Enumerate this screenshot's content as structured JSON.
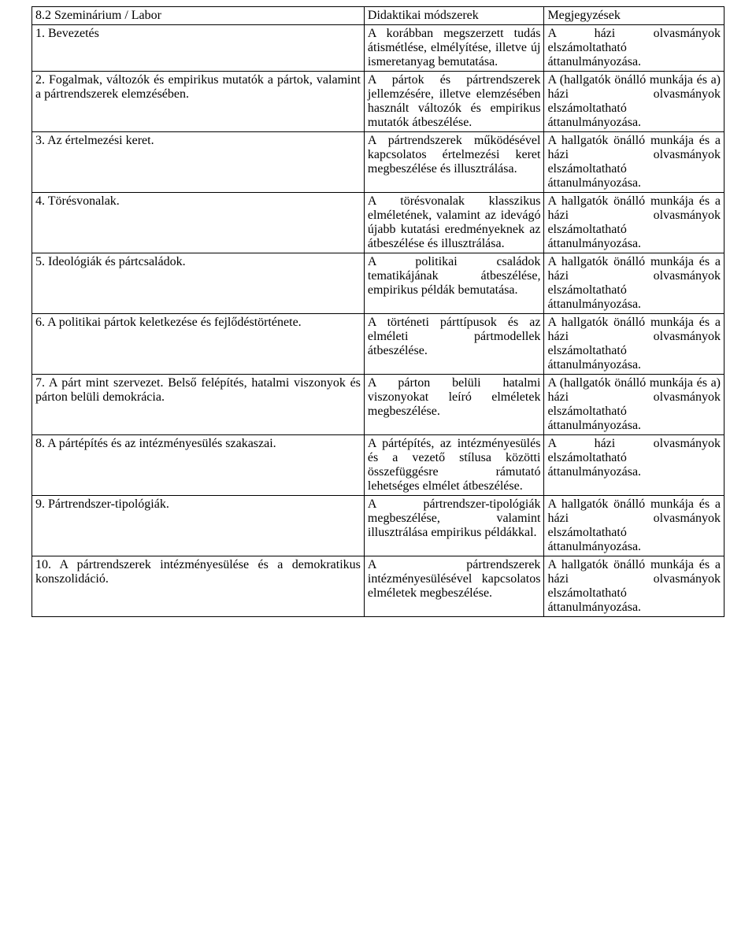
{
  "table": {
    "header": {
      "col1": "8.2 Szeminárium / Labor",
      "col2": "Didaktikai módszerek",
      "col3": "Megjegyzések"
    },
    "rows": [
      {
        "topic": "1. Bevezetés",
        "method": "A korábban megszerzett tudás átismétlése, elmélyítése, illetve új ismeretanyag bemutatása.",
        "note": "A házi olvasmányok elszámoltatható áttanulmányozása."
      },
      {
        "topic": "2. Fogalmak, változók és empirikus mutatók a pártok, valamint a pártrendszerek elemzésében.",
        "method": "A pártok és pártrendszerek jellemzésére, illetve elemzésében használt változók és empirikus mutatók átbeszélése.",
        "note": "A (hallgatók önálló munkája és a) házi olvasmányok elszámoltatható áttanulmányozása."
      },
      {
        "topic": "3. Az értelmezési keret.",
        "method": "A pártrendszerek működésével kapcsolatos értelmezési keret megbeszélése és illusztrálása.",
        "note": "A hallgatók önálló munkája és a házi olvasmányok elszámoltatható áttanulmányozása."
      },
      {
        "topic": "4. Törésvonalak.",
        "method": "A törésvonalak klasszikus elméletének, valamint az idevágó újabb kutatási eredményeknek az átbeszélése és illusztrálása.",
        "note": "A hallgatók önálló munkája és a házi olvasmányok elszámoltatható áttanulmányozása."
      },
      {
        "topic": "5. Ideológiák és pártcsaládok.",
        "method": "A politikai családok tematikájának átbeszélése, empirikus példák bemutatása.",
        "note": "A hallgatók önálló munkája és a házi olvasmányok elszámoltatható áttanulmányozása."
      },
      {
        "topic": "6. A politikai pártok keletkezése és fejlődéstörténete.",
        "method": "A történeti párttípusok és az elméleti pártmodellek átbeszélése.",
        "note": "A hallgatók önálló munkája és a házi olvasmányok elszámoltatható áttanulmányozása."
      },
      {
        "topic": "7. A párt mint szervezet. Belső felépítés, hatalmi viszonyok és párton belüli demokrácia.",
        "method": "A párton belüli hatalmi viszonyokat leíró elméletek megbeszélése.",
        "note": "A (hallgatók önálló munkája és a) házi olvasmányok elszámoltatható áttanulmányozása."
      },
      {
        "topic": "8. A pártépítés és az intézményesülés szakaszai.",
        "method": "A pártépítés, az intézményesülés és a vezető stílusa közötti összefüggésre rámutató lehetséges elmélet átbeszélése.",
        "note": "A házi olvasmányok elszámoltatható áttanulmányozása."
      },
      {
        "topic": "9. Pártrendszer-tipológiák.",
        "method": "A pártrendszer-tipológiák megbeszélése, valamint illusztrálása empirikus példákkal.",
        "note": "A hallgatók önálló munkája és a házi olvasmányok elszámoltatható áttanulmányozása."
      },
      {
        "topic": "10. A pártrendszerek intézményesülése és a demokratikus konszolidáció.",
        "method": "A pártrendszerek intézményesülésével kapcsolatos elméletek megbeszélése.",
        "note": "A hallgatók önálló munkája és a házi olvasmányok elszámoltatható áttanulmányozása."
      }
    ]
  },
  "style": {
    "font_family": "Times New Roman",
    "font_size_pt": 12,
    "text_color": "#000000",
    "background_color": "#ffffff",
    "border_color": "#000000",
    "col_widths_pct": [
      48,
      26,
      26
    ]
  }
}
